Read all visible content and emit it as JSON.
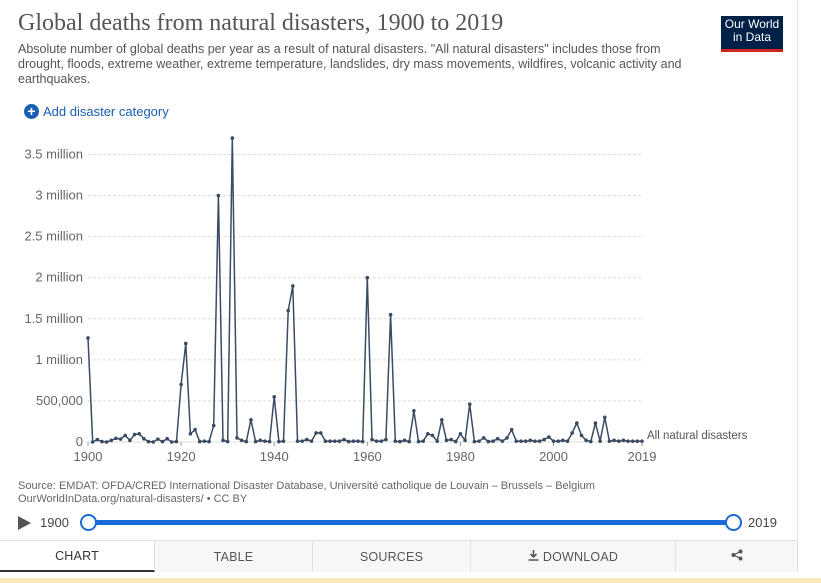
{
  "header": {
    "title": "Global deaths from natural disasters, 1900 to 2019",
    "subtitle": "Absolute number of global deaths per year as a result of natural disasters. \"All natural disasters\" includes those from drought, floods, extreme weather, extreme temperature, landslides, dry mass movements, wildfires, volcanic activity and earthquakes.",
    "logo_line1": "Our World",
    "logo_line2": "in Data"
  },
  "controls": {
    "add_category_label": "Add disaster category",
    "plus_icon": "plus-circle-icon"
  },
  "chart_data": {
    "type": "line",
    "title": "Global deaths from natural disasters, 1900 to 2019",
    "xlabel": "",
    "ylabel": "",
    "xlim": [
      1900,
      2019
    ],
    "ylim": [
      0,
      3750000
    ],
    "y_ticks": [
      0,
      500000,
      1000000,
      1500000,
      2000000,
      2500000,
      3000000,
      3500000
    ],
    "y_tick_labels": [
      "0",
      "500,000",
      "1 million",
      "1.5 million",
      "2 million",
      "2.5 million",
      "3 million",
      "3.5 million"
    ],
    "x_ticks": [
      1900,
      1920,
      1940,
      1960,
      1980,
      2000,
      2019
    ],
    "x_tick_labels": [
      "1900",
      "1920",
      "1940",
      "1960",
      "1980",
      "2000",
      "2019"
    ],
    "grid": true,
    "color": "#3b4b62",
    "series": [
      {
        "name": "All natural disasters",
        "x": [
          1900,
          1901,
          1902,
          1903,
          1904,
          1905,
          1906,
          1907,
          1908,
          1909,
          1910,
          1911,
          1912,
          1913,
          1914,
          1915,
          1916,
          1917,
          1918,
          1919,
          1920,
          1921,
          1922,
          1923,
          1924,
          1925,
          1926,
          1927,
          1928,
          1929,
          1930,
          1931,
          1932,
          1933,
          1934,
          1935,
          1936,
          1937,
          1938,
          1939,
          1940,
          1941,
          1942,
          1943,
          1944,
          1945,
          1946,
          1947,
          1948,
          1949,
          1950,
          1951,
          1952,
          1953,
          1954,
          1955,
          1956,
          1957,
          1958,
          1959,
          1960,
          1961,
          1962,
          1963,
          1964,
          1965,
          1966,
          1967,
          1968,
          1969,
          1970,
          1971,
          1972,
          1973,
          1974,
          1975,
          1976,
          1977,
          1978,
          1979,
          1980,
          1981,
          1982,
          1983,
          1984,
          1985,
          1986,
          1987,
          1988,
          1989,
          1990,
          1991,
          1992,
          1993,
          1994,
          1995,
          1996,
          1997,
          1998,
          1999,
          2000,
          2001,
          2002,
          2003,
          2004,
          2005,
          2006,
          2007,
          2008,
          2009,
          2010,
          2011,
          2012,
          2013,
          2014,
          2015,
          2016,
          2017,
          2018,
          2019
        ],
        "values": [
          1267360,
          0,
          30000,
          5000,
          0,
          20000,
          45000,
          35000,
          80000,
          20000,
          90000,
          100000,
          40000,
          5000,
          0,
          35000,
          5000,
          40000,
          0,
          5000,
          700000,
          1200000,
          100000,
          150000,
          5000,
          10000,
          5000,
          200000,
          3000000,
          20000,
          5000,
          3700000,
          50000,
          20000,
          5000,
          270000,
          5000,
          20000,
          10000,
          5000,
          550000,
          5000,
          10000,
          1600000,
          1900000,
          10000,
          10000,
          30000,
          10000,
          110000,
          110000,
          10000,
          10000,
          10000,
          10000,
          30000,
          5000,
          10000,
          10000,
          5000,
          2000000,
          30000,
          10000,
          10000,
          30000,
          1550000,
          10000,
          5000,
          20000,
          5000,
          380000,
          5000,
          10000,
          100000,
          80000,
          10000,
          270000,
          20000,
          30000,
          5000,
          100000,
          20000,
          460000,
          5000,
          10000,
          50000,
          5000,
          10000,
          40000,
          10000,
          50000,
          150000,
          10000,
          10000,
          10000,
          20000,
          10000,
          10000,
          30000,
          60000,
          10000,
          10000,
          20000,
          10000,
          110000,
          230000,
          80000,
          20000,
          5000,
          230000,
          10000,
          300000,
          10000,
          20000,
          10000,
          20000,
          10000,
          10000,
          10000,
          10000
        ]
      }
    ]
  },
  "footer": {
    "source_line1": "Source: EMDAT: OFDA/CRED International Disaster Database, Université catholique de Louvain – Brussels – Belgium",
    "source_line2": "OurWorldInData.org/natural-disasters/ • CC BY"
  },
  "timeline": {
    "start_label": "1900",
    "end_label": "2019",
    "range_start_fraction": 0,
    "range_end_fraction": 1
  },
  "tabs": [
    {
      "label": "CHART",
      "active": true
    },
    {
      "label": "TABLE",
      "active": false
    },
    {
      "label": "SOURCES",
      "active": false
    },
    {
      "label": "DOWNLOAD",
      "active": false,
      "icon": "download-icon"
    },
    {
      "label": "",
      "active": false,
      "icon": "share-icon"
    }
  ]
}
